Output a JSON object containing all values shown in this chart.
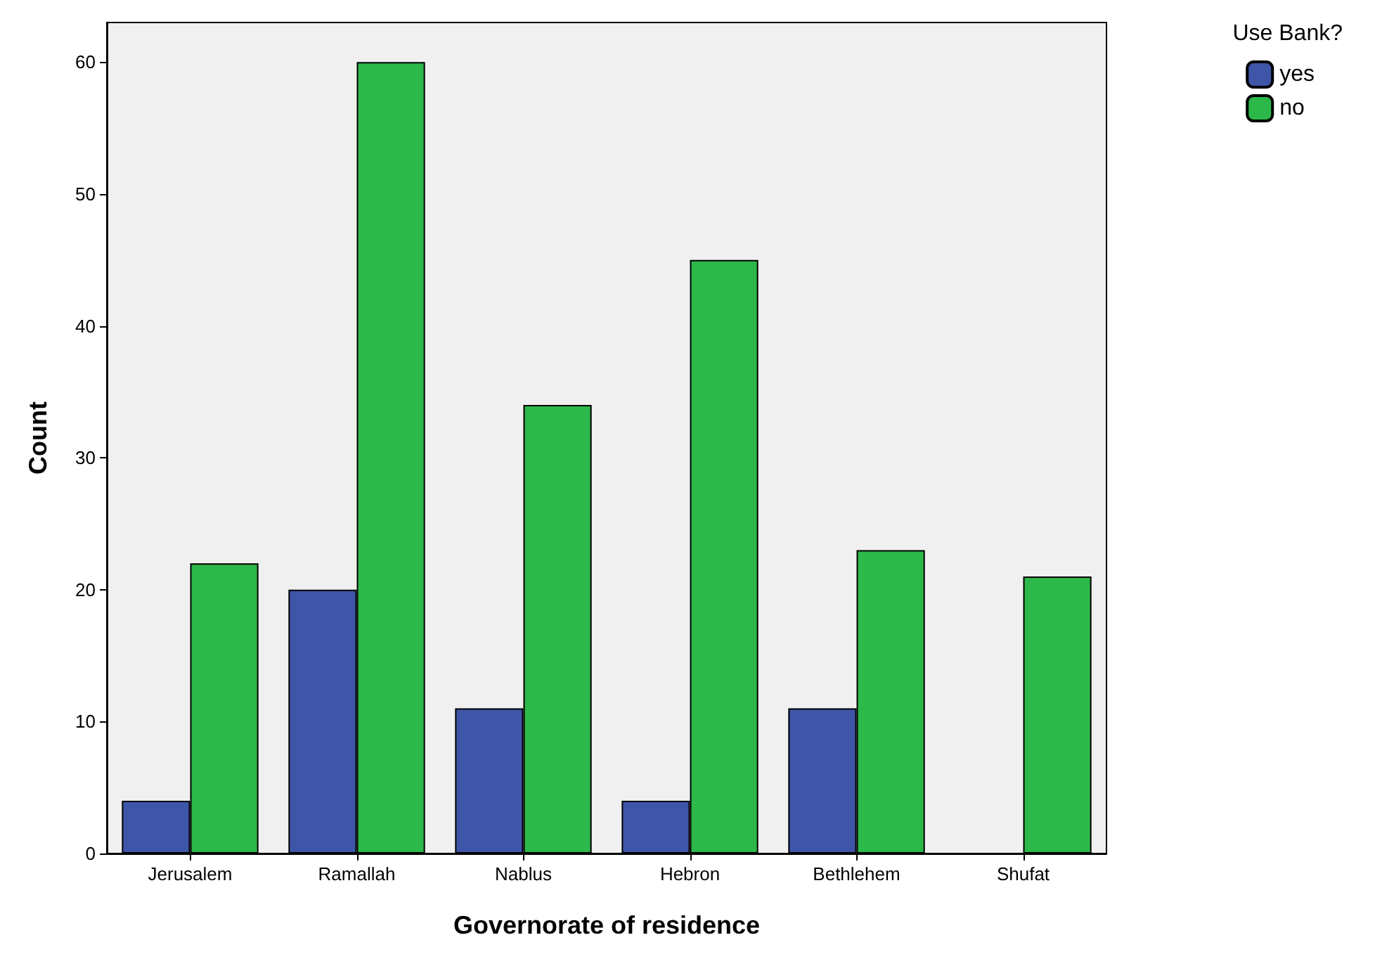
{
  "chart_data": {
    "type": "bar",
    "xlabel": "Governorate of residence",
    "ylabel": "Count",
    "legend_title": "Use Bank?",
    "categories": [
      "Jerusalem",
      "Ramallah",
      "Nablus",
      "Hebron",
      "Bethlehem",
      "Shufat"
    ],
    "series": [
      {
        "name": "yes",
        "color": "#3f55a8",
        "values": [
          4,
          20,
          11,
          4,
          11,
          null
        ]
      },
      {
        "name": "no",
        "color": "#2db84a",
        "values": [
          22,
          60,
          34,
          45,
          23,
          21
        ]
      }
    ],
    "ylim": [
      0,
      63
    ],
    "yticks": [
      0,
      10,
      20,
      30,
      40,
      50,
      60
    ],
    "grid": false,
    "legend": "top right"
  }
}
